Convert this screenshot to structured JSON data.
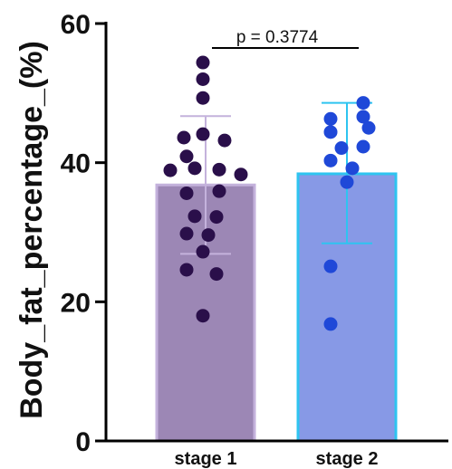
{
  "chart_data": {
    "type": "bar",
    "ylabel": "Body_fat_percentage_(%)",
    "ylim": [
      0,
      60
    ],
    "yticks": [
      "0",
      "20",
      "40",
      "60"
    ],
    "categories": [
      "stage 1",
      "stage 2"
    ],
    "bars": [
      {
        "category": "stage 1",
        "mean": 36.8,
        "sd_upper": 46.7,
        "sd_lower": 26.9,
        "fill": "#9c87b5",
        "stroke": "#c4b2dc",
        "point_color": "#2a0f4a",
        "points": [
          {
            "x": -0.05,
            "y": 54.4
          },
          {
            "x": -0.05,
            "y": 52.0
          },
          {
            "x": -0.05,
            "y": 49.3
          },
          {
            "x": -0.4,
            "y": 43.6
          },
          {
            "x": -0.05,
            "y": 44.1
          },
          {
            "x": 0.35,
            "y": 43.2
          },
          {
            "x": -0.35,
            "y": 40.9
          },
          {
            "x": -0.65,
            "y": 38.9
          },
          {
            "x": -0.2,
            "y": 39.2
          },
          {
            "x": 0.25,
            "y": 39.0
          },
          {
            "x": 0.65,
            "y": 38.3
          },
          {
            "x": -0.35,
            "y": 35.6
          },
          {
            "x": 0.25,
            "y": 35.9
          },
          {
            "x": -0.2,
            "y": 32.3
          },
          {
            "x": 0.2,
            "y": 32.2
          },
          {
            "x": -0.35,
            "y": 29.8
          },
          {
            "x": 0.05,
            "y": 29.6
          },
          {
            "x": -0.05,
            "y": 27.2
          },
          {
            "x": -0.35,
            "y": 24.6
          },
          {
            "x": 0.2,
            "y": 24.0
          },
          {
            "x": -0.05,
            "y": 18.0
          }
        ]
      },
      {
        "category": "stage 2",
        "mean": 38.4,
        "sd_upper": 48.6,
        "sd_lower": 28.4,
        "fill": "#8799e6",
        "stroke": "#2ec4f0",
        "point_color": "#1f48d8",
        "points": [
          {
            "x": 0.3,
            "y": 48.6
          },
          {
            "x": -0.3,
            "y": 46.3
          },
          {
            "x": 0.3,
            "y": 46.6
          },
          {
            "x": -0.3,
            "y": 44.4
          },
          {
            "x": 0.4,
            "y": 45.0
          },
          {
            "x": -0.1,
            "y": 42.1
          },
          {
            "x": 0.3,
            "y": 42.3
          },
          {
            "x": -0.3,
            "y": 40.3
          },
          {
            "x": 0.1,
            "y": 39.2
          },
          {
            "x": 0.0,
            "y": 37.2
          },
          {
            "x": -0.3,
            "y": 25.1
          },
          {
            "x": -0.3,
            "y": 16.8
          }
        ]
      }
    ],
    "annotation": {
      "text": "p = 0.3774",
      "between": [
        "stage 1",
        "stage 2"
      ]
    }
  }
}
